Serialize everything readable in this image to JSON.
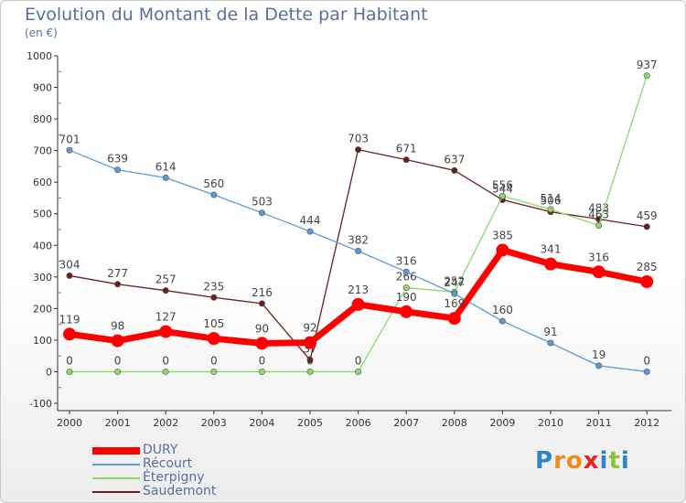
{
  "header": {
    "title": "Evolution du Montant de la Dette par Habitant",
    "unit": "(en €)"
  },
  "brand": {
    "letters": [
      "P",
      "r",
      "o",
      "x",
      "i",
      "t",
      "i"
    ],
    "colors": [
      "#2e86c8",
      "#f08c1e",
      "#f08c1e",
      "#e8241e",
      "#2e86c8",
      "#8cc43c",
      "#2e86c8"
    ]
  },
  "chart_data": {
    "type": "line",
    "x": [
      "2000",
      "2001",
      "2002",
      "2003",
      "2004",
      "2005",
      "2006",
      "2007",
      "2008",
      "2009",
      "2010",
      "2011",
      "2012"
    ],
    "ylim": [
      -100,
      1000
    ],
    "yticks": [
      -100,
      0,
      100,
      200,
      300,
      400,
      500,
      600,
      700,
      800,
      900,
      1000
    ],
    "grid": false,
    "legend_position": "bottom-left",
    "series": [
      {
        "name": "Saudemont",
        "color": "#6b1f1f",
        "values": [
          304,
          277,
          257,
          235,
          216,
          37,
          703,
          671,
          637,
          544,
          506,
          483,
          459
        ]
      },
      {
        "name": "Éterpigny",
        "color": "#8cd96a",
        "values": [
          0,
          0,
          0,
          0,
          0,
          0,
          0,
          266,
          252,
          556,
          514,
          463,
          937
        ]
      },
      {
        "name": "Récourt",
        "color": "#5b9bd5",
        "values": [
          701,
          639,
          614,
          560,
          503,
          444,
          382,
          316,
          247,
          160,
          91,
          19,
          0
        ]
      },
      {
        "name": "DURY",
        "color": "#ff0000",
        "values": [
          119,
          98,
          127,
          105,
          90,
          92,
          213,
          190,
          169,
          385,
          341,
          316,
          285
        ]
      }
    ],
    "legend_order": [
      "DURY",
      "Récourt",
      "Éterpigny",
      "Saudemont"
    ]
  }
}
